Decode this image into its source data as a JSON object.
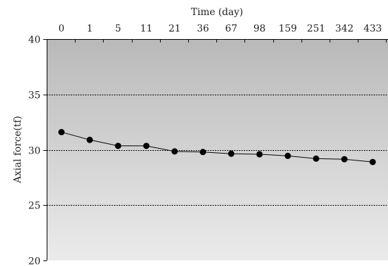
{
  "chart_data": {
    "type": "line",
    "title": "",
    "xlabel": "Time (day)",
    "ylabel": "Axial force(tf)",
    "x_axis_position": "top",
    "categories": [
      "0",
      "1",
      "5",
      "11",
      "21",
      "36",
      "67",
      "98",
      "159",
      "251",
      "342",
      "433"
    ],
    "series": [
      {
        "values": [
          31.6,
          30.9,
          30.35,
          30.35,
          29.85,
          29.8,
          29.65,
          29.6,
          29.45,
          29.2,
          29.15,
          28.9
        ]
      }
    ],
    "ylim": [
      20,
      40
    ],
    "yticks": [
      20,
      25,
      30,
      35,
      40
    ],
    "grid": "horizontal-dashed",
    "legend": "none",
    "colors": {
      "plot_bg_top": "#b9b9b9",
      "plot_bg_bottom": "#ebebeb",
      "line": "#000000",
      "marker": "#000000",
      "grid": "#000000"
    }
  }
}
